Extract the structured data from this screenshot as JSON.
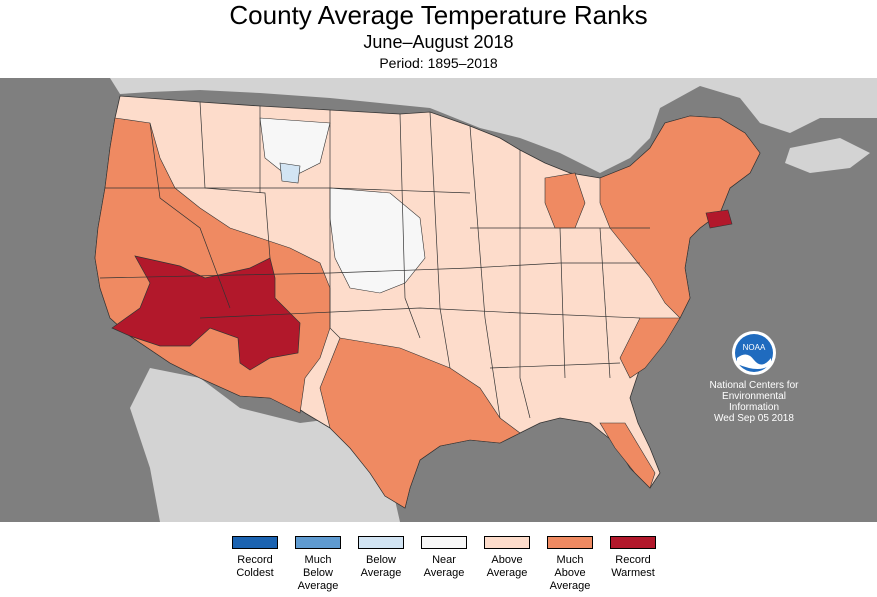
{
  "header": {
    "title": "County Average Temperature Ranks",
    "subtitle": "June–August 2018",
    "period": "Period: 1895–2018"
  },
  "credit": {
    "line1": "National Centers for",
    "line2": "Environmental",
    "line3": "Information",
    "line4": "Wed Sep 05 2018"
  },
  "logo": {
    "text": "NOAA",
    "icon": "noaa-logo-icon"
  },
  "colors": {
    "record_coldest": "#1b63b1",
    "much_below": "#5f9bd1",
    "below": "#d2e4f3",
    "near": "#f7f7f7",
    "above": "#fddccb",
    "much_above": "#ef8a62",
    "record_warmest": "#b2182b",
    "land_other": "#d3d3d3",
    "water": "#7f7f7f"
  },
  "legend": [
    {
      "label": "Record\nColdest",
      "color": "#1b63b1"
    },
    {
      "label": "Much\nBelow\nAverage",
      "color": "#5f9bd1"
    },
    {
      "label": "Below\nAverage",
      "color": "#d2e4f3"
    },
    {
      "label": "Near\nAverage",
      "color": "#f7f7f7"
    },
    {
      "label": "Above\nAverage",
      "color": "#fddccb"
    },
    {
      "label": "Much\nAbove\nAverage",
      "color": "#ef8a62"
    },
    {
      "label": "Record\nWarmest",
      "color": "#b2182b"
    }
  ]
}
